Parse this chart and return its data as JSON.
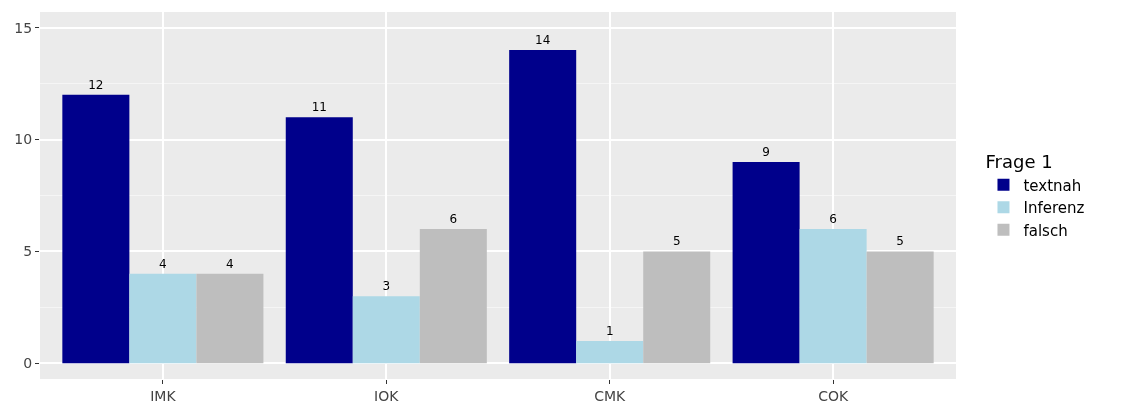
{
  "chart_data": {
    "type": "bar",
    "legend_title": "Frage 1",
    "categories": [
      "IMK",
      "IOK",
      "CMK",
      "COK"
    ],
    "series": [
      {
        "name": "textnah",
        "color": "#00008b",
        "values": [
          12,
          11,
          14,
          9
        ]
      },
      {
        "name": "Inferenz",
        "color": "#add8e6",
        "values": [
          4,
          3,
          1,
          6
        ]
      },
      {
        "name": "falsch",
        "color": "#bebebe",
        "values": [
          4,
          6,
          5,
          5
        ]
      }
    ],
    "ylim": [
      -0.7,
      15.7
    ],
    "yticks": [
      0,
      5,
      10,
      15
    ],
    "grid": true,
    "legend": "right",
    "data_labels": true
  }
}
